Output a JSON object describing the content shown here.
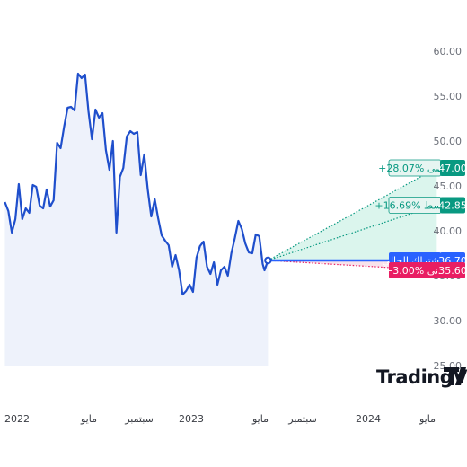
{
  "chart_data": {
    "type": "line",
    "title": "",
    "xlabel": "",
    "ylabel": "",
    "y_axis_side": "right",
    "ylim": [
      23.5,
      61.5
    ],
    "y_ticks": [
      "25.00",
      "30.00",
      "35.00",
      "40.00",
      "45.00",
      "50.00",
      "55.00",
      "60.00"
    ],
    "x_ticks": [
      "2022",
      "مايو",
      "سبتمبر",
      "2023",
      "مايو",
      "سبتمبر",
      "2024",
      "مايو"
    ],
    "series": [
      {
        "values": [
          [
            2021.93,
            43.2
          ],
          [
            2021.95,
            42.2
          ],
          [
            2021.97,
            39.8
          ],
          [
            2021.99,
            41.3
          ],
          [
            2022.01,
            45.2
          ],
          [
            2022.03,
            41.3
          ],
          [
            2022.05,
            42.5
          ],
          [
            2022.07,
            42.0
          ],
          [
            2022.09,
            45.1
          ],
          [
            2022.11,
            44.9
          ],
          [
            2022.13,
            42.8
          ],
          [
            2022.15,
            42.5
          ],
          [
            2022.17,
            44.6
          ],
          [
            2022.19,
            42.7
          ],
          [
            2022.21,
            43.4
          ],
          [
            2022.23,
            49.8
          ],
          [
            2022.25,
            49.2
          ],
          [
            2022.27,
            51.6
          ],
          [
            2022.29,
            53.7
          ],
          [
            2022.31,
            53.8
          ],
          [
            2022.33,
            53.4
          ],
          [
            2022.35,
            57.5
          ],
          [
            2022.37,
            57.0
          ],
          [
            2022.39,
            57.4
          ],
          [
            2022.41,
            53.3
          ],
          [
            2022.43,
            50.2
          ],
          [
            2022.45,
            53.5
          ],
          [
            2022.47,
            52.6
          ],
          [
            2022.49,
            53.1
          ],
          [
            2022.51,
            49.0
          ],
          [
            2022.53,
            46.8
          ],
          [
            2022.55,
            50.0
          ],
          [
            2022.57,
            39.8
          ],
          [
            2022.59,
            46.0
          ],
          [
            2022.61,
            47.0
          ],
          [
            2022.63,
            50.5
          ],
          [
            2022.65,
            51.1
          ],
          [
            2022.67,
            50.8
          ],
          [
            2022.69,
            51.0
          ],
          [
            2022.71,
            46.2
          ],
          [
            2022.73,
            48.5
          ],
          [
            2022.75,
            44.6
          ],
          [
            2022.77,
            41.6
          ],
          [
            2022.79,
            43.5
          ],
          [
            2022.81,
            41.4
          ],
          [
            2022.83,
            39.5
          ],
          [
            2022.85,
            38.9
          ],
          [
            2022.87,
            38.4
          ],
          [
            2022.89,
            36.0
          ],
          [
            2022.91,
            37.3
          ],
          [
            2022.93,
            35.6
          ],
          [
            2022.95,
            32.9
          ],
          [
            2022.97,
            33.3
          ],
          [
            2022.99,
            34.0
          ],
          [
            2023.01,
            33.2
          ],
          [
            2023.03,
            37.0
          ],
          [
            2023.05,
            38.3
          ],
          [
            2023.07,
            38.8
          ],
          [
            2023.09,
            36.0
          ],
          [
            2023.11,
            35.2
          ],
          [
            2023.13,
            36.5
          ],
          [
            2023.15,
            34.0
          ],
          [
            2023.17,
            35.6
          ],
          [
            2023.19,
            36.0
          ],
          [
            2023.21,
            35.0
          ],
          [
            2023.23,
            37.5
          ],
          [
            2023.25,
            39.2
          ],
          [
            2023.27,
            41.1
          ],
          [
            2023.29,
            40.2
          ],
          [
            2023.31,
            38.6
          ],
          [
            2023.33,
            37.6
          ],
          [
            2023.35,
            37.5
          ],
          [
            2023.37,
            39.6
          ],
          [
            2023.39,
            39.4
          ],
          [
            2023.41,
            36.3
          ],
          [
            2023.42,
            35.6
          ],
          [
            2023.44,
            36.7
          ]
        ]
      }
    ],
    "forecast": {
      "from_x": 2023.44,
      "to_x": 2024.44,
      "start_value": 36.7,
      "targets": [
        {
          "text": "+28.07% أقصى",
          "value": 47.0,
          "value_label": "47.00",
          "color": "#089981",
          "bg": "#e6f5f1"
        },
        {
          "text": "+16.69% متوسط",
          "value": 42.85,
          "value_label": "42.85",
          "color": "#089981",
          "bg": "#e6f5f1"
        },
        {
          "text": "الاشتراك الحالي",
          "value": 36.7,
          "value_label": "36.70",
          "color": "#2962ff",
          "bg": "#2962ff"
        },
        {
          "text": "−3.00% أدنى",
          "value": 35.6,
          "value_label": "35.60",
          "color": "#e91e63",
          "bg": "#e91e63"
        }
      ]
    },
    "colors": {
      "line": "#1f4fcc",
      "area": "#eef2fb",
      "fan": "#d5f3ea",
      "axis_text": "#6b6f78"
    },
    "watermark": "TradingView"
  }
}
